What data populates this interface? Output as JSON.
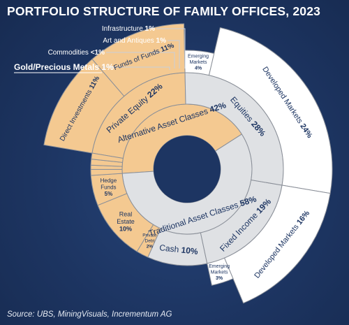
{
  "chart_data": {
    "type": "sunburst",
    "title": "PORTFOLIO STRUCTURE OF FAMILY OFFICES, 2023",
    "source": "Source: UBS, MiningVisuals, Incrementum AG",
    "colors": {
      "alternative": "#f4c991",
      "traditional": "#dfe1e4",
      "traditional_outer": "#ffffff",
      "stroke": "#8a8f98",
      "text": "#1d3562"
    },
    "inner_ring": [
      {
        "label": "Alternative Asset Classes",
        "value": "42%",
        "share": 42
      },
      {
        "label": "Traditional Asset Classes",
        "value": "58%",
        "share": 58
      }
    ],
    "middle_ring": [
      {
        "label": "Private Equity",
        "value": "22%",
        "share": 22
      },
      {
        "label": "Hedge Funds",
        "value": "5%",
        "share": 5
      },
      {
        "label": "Real Estate",
        "value": "10%",
        "share": 10
      },
      {
        "label": "Private Debt",
        "value": "2%",
        "share": 2
      },
      {
        "label": "Cash",
        "value": "10%",
        "share": 10
      },
      {
        "label": "Fixed Income",
        "value": "19%",
        "share": 19
      },
      {
        "label": "Equities",
        "value": "28%",
        "share": 28
      },
      {
        "label": "Gold/Precious Metals",
        "value": "1%",
        "share": 1
      },
      {
        "label": "Commodities",
        "value": "<1%",
        "share": 0.7
      },
      {
        "label": "Art and Antiques",
        "value": "1%",
        "share": 1
      },
      {
        "label": "Infrastructure",
        "value": "1%",
        "share": 1
      }
    ],
    "outer_ring": [
      {
        "label": "Direct Investments",
        "value": "11%",
        "share": 11
      },
      {
        "label": "Funds of Funds",
        "value": "11%",
        "share": 11
      },
      {
        "label": "Emerging Markets",
        "value": "4%",
        "share": 4
      },
      {
        "label": "Developed Markets",
        "value": "24%",
        "share": 24
      },
      {
        "label": "Developed Markets",
        "value": "16%",
        "share": 16
      },
      {
        "label": "Emerging Markets",
        "value": "3%",
        "share": 3
      }
    ]
  }
}
